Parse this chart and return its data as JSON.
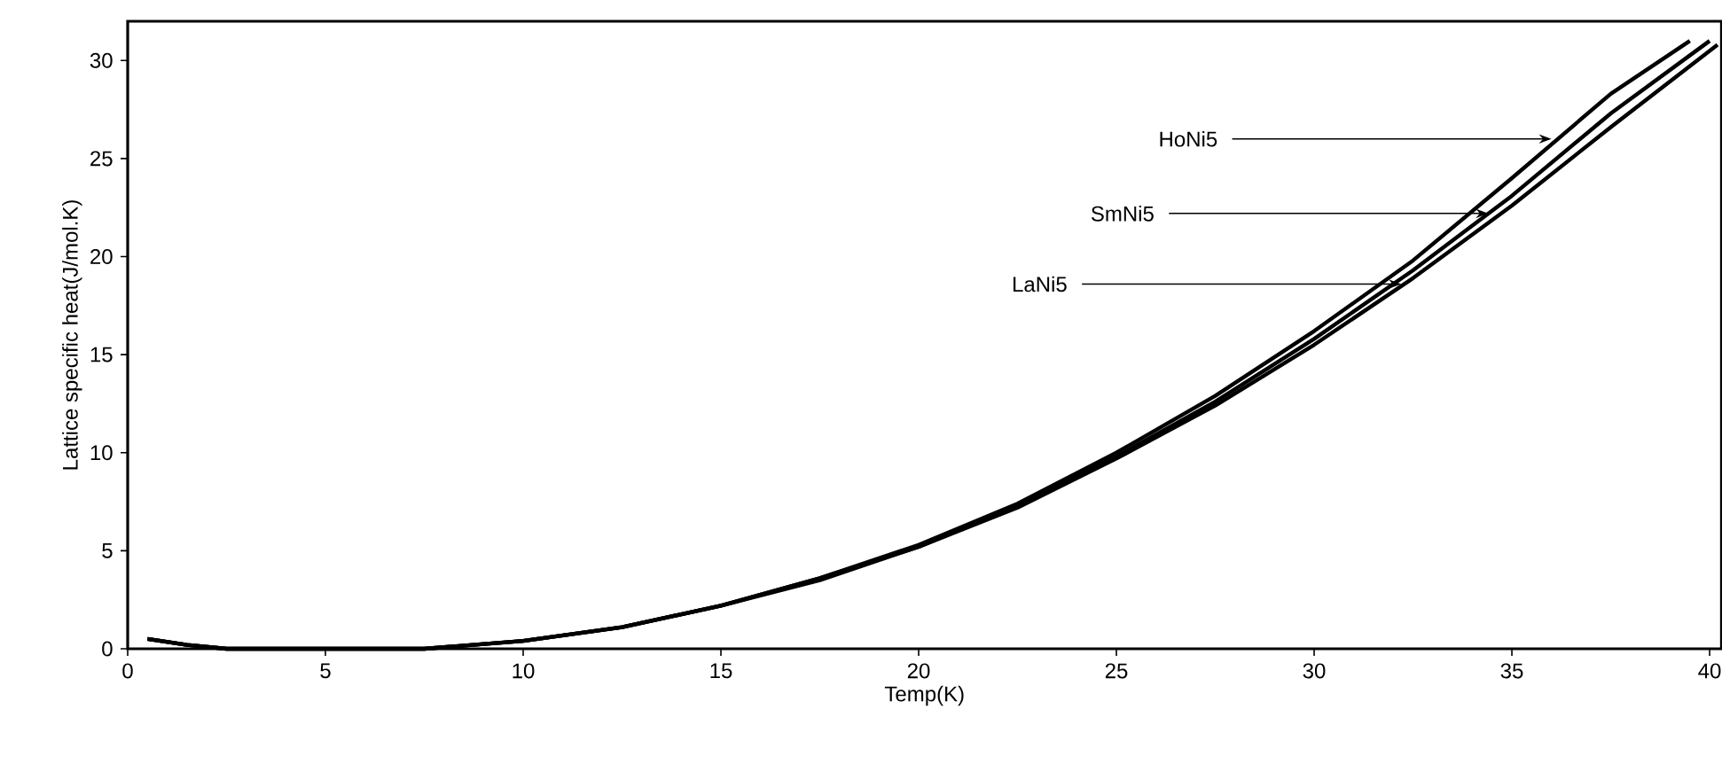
{
  "chart_data": {
    "type": "line",
    "xlabel": "Temp(K)",
    "ylabel": "Lattice specific heat(J/mol.K)",
    "xlim": [
      0,
      40.3
    ],
    "ylim": [
      0,
      32
    ],
    "xticks": [
      0,
      5,
      10,
      15,
      20,
      25,
      30,
      35,
      40
    ],
    "yticks": [
      0,
      5,
      10,
      15,
      20,
      25,
      30
    ],
    "marker": "none",
    "line_style": "solid",
    "series": [
      {
        "color": "#000000",
        "x": [
          0.5,
          1.5,
          2.5,
          7.5,
          10,
          12.5,
          15,
          17.5,
          20,
          22.5,
          25,
          27.5,
          30,
          32.5,
          35,
          37.5,
          39.5
        ],
        "values": [
          0.5,
          0.2,
          0,
          0,
          0.4,
          1.1,
          2.2,
          3.6,
          5.3,
          7.4,
          10,
          12.9,
          16.2,
          19.8,
          24,
          28.3,
          31
        ]
      },
      {
        "color": "#000000",
        "x": [
          0.5,
          1.5,
          2.5,
          7.5,
          10,
          12.5,
          15,
          17.5,
          20,
          22.5,
          25,
          27.5,
          30,
          32.5,
          35,
          37.5,
          40
        ],
        "values": [
          0.5,
          0.2,
          0,
          0,
          0.4,
          1.1,
          2.2,
          3.6,
          5.2,
          7.3,
          9.8,
          12.6,
          15.8,
          19.3,
          23.1,
          27.3,
          31
        ]
      },
      {
        "color": "#000000",
        "x": [
          0.5,
          1.5,
          2.5,
          7.5,
          10,
          12.5,
          15,
          17.5,
          20,
          22.5,
          25,
          27.5,
          30,
          32.5,
          35,
          37.5,
          40.2
        ],
        "values": [
          0.5,
          0.2,
          0,
          0,
          0.4,
          1.1,
          2.2,
          3.5,
          5.2,
          7.2,
          9.7,
          12.4,
          15.5,
          18.9,
          22.6,
          26.6,
          30.8
        ]
      }
    ],
    "annotations": [
      {
        "text": "HoNi5",
        "x": 36,
        "y": 26
      },
      {
        "text": "SmNi5",
        "x": 34.4,
        "y": 22.2
      },
      {
        "text": "LaNi5",
        "x": 32.2,
        "y": 18.6
      }
    ]
  }
}
